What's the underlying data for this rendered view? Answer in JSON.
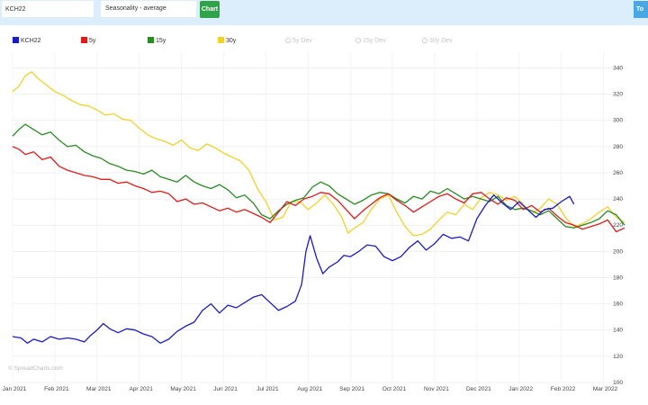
{
  "toolbar": {
    "symbol_value": "KCH22",
    "mode_value": "Seasonality - average",
    "chart_button": "Chart",
    "tools_button": "To"
  },
  "legend": [
    {
      "label": "KCH22",
      "color": "#1a1ac8",
      "active": true
    },
    {
      "label": "5y",
      "color": "#e11b1b",
      "active": true
    },
    {
      "label": "15y",
      "color": "#2a8a23",
      "active": true
    },
    {
      "label": "30y",
      "color": "#f1d22a",
      "active": true
    },
    {
      "label": "5y Dev",
      "color": "#cccccc",
      "active": false
    },
    {
      "label": "15y Dev",
      "color": "#cccccc",
      "active": false
    },
    {
      "label": "30y Dev",
      "color": "#cccccc",
      "active": false
    }
  ],
  "watermark": "© SpreadCharts.com",
  "chart_data": {
    "type": "line",
    "x_ticks": [
      "Jan 2021",
      "Feb 2021",
      "Mar 2021",
      "Apr 2021",
      "May 2021",
      "Jun 2021",
      "Jul 2021",
      "Aug 2021",
      "Sep 2021",
      "Oct 2021",
      "Nov 2021",
      "Dec 2021",
      "Jan 2022",
      "Feb 2022",
      "Mar 2022"
    ],
    "y_ticks": [
      100,
      120,
      140,
      160,
      180,
      200,
      220,
      240,
      260,
      280,
      300,
      320,
      340
    ],
    "ylim": [
      100,
      352
    ],
    "xlim": [
      0,
      14.5
    ],
    "grid": true,
    "legend_position": "top-left",
    "series": [
      {
        "name": "KCH22",
        "color": "#1a1ac8",
        "points": [
          [
            0,
            135
          ],
          [
            0.2,
            134
          ],
          [
            0.35,
            130
          ],
          [
            0.5,
            133
          ],
          [
            0.7,
            131
          ],
          [
            0.9,
            135
          ],
          [
            1.1,
            133
          ],
          [
            1.3,
            134
          ],
          [
            1.5,
            133
          ],
          [
            1.7,
            131
          ],
          [
            1.85,
            136
          ],
          [
            2.0,
            140
          ],
          [
            2.15,
            145
          ],
          [
            2.3,
            141
          ],
          [
            2.5,
            138
          ],
          [
            2.7,
            141
          ],
          [
            2.9,
            140
          ],
          [
            3.1,
            137
          ],
          [
            3.3,
            135
          ],
          [
            3.5,
            130
          ],
          [
            3.7,
            133
          ],
          [
            3.9,
            139
          ],
          [
            4.1,
            143
          ],
          [
            4.3,
            146
          ],
          [
            4.5,
            155
          ],
          [
            4.7,
            160
          ],
          [
            4.9,
            153
          ],
          [
            5.1,
            159
          ],
          [
            5.3,
            157
          ],
          [
            5.5,
            161
          ],
          [
            5.7,
            165
          ],
          [
            5.9,
            167
          ],
          [
            6.1,
            161
          ],
          [
            6.3,
            155
          ],
          [
            6.5,
            158
          ],
          [
            6.7,
            162
          ],
          [
            6.85,
            175
          ],
          [
            6.95,
            200
          ],
          [
            7.05,
            212
          ],
          [
            7.2,
            195
          ],
          [
            7.35,
            183
          ],
          [
            7.5,
            188
          ],
          [
            7.7,
            192
          ],
          [
            7.85,
            197
          ],
          [
            8.0,
            196
          ],
          [
            8.2,
            200
          ],
          [
            8.4,
            205
          ],
          [
            8.6,
            204
          ],
          [
            8.8,
            196
          ],
          [
            9.0,
            193
          ],
          [
            9.2,
            196
          ],
          [
            9.4,
            203
          ],
          [
            9.6,
            208
          ],
          [
            9.8,
            201
          ],
          [
            10.0,
            206
          ],
          [
            10.2,
            213
          ],
          [
            10.4,
            210
          ],
          [
            10.6,
            211
          ],
          [
            10.8,
            208
          ],
          [
            11.0,
            225
          ],
          [
            11.2,
            235
          ],
          [
            11.4,
            243
          ],
          [
            11.6,
            237
          ],
          [
            11.8,
            232
          ],
          [
            12.0,
            238
          ],
          [
            12.2,
            232
          ],
          [
            12.4,
            226
          ],
          [
            12.6,
            232
          ],
          [
            12.8,
            233
          ],
          [
            13.0,
            238
          ],
          [
            13.2,
            242
          ],
          [
            13.3,
            236
          ]
        ]
      },
      {
        "name": "5y",
        "color": "#e11b1b",
        "points": [
          [
            0,
            280
          ],
          [
            0.15,
            278
          ],
          [
            0.3,
            274
          ],
          [
            0.5,
            276
          ],
          [
            0.7,
            270
          ],
          [
            0.9,
            272
          ],
          [
            1.1,
            265
          ],
          [
            1.3,
            262
          ],
          [
            1.5,
            260
          ],
          [
            1.7,
            258
          ],
          [
            1.9,
            257
          ],
          [
            2.1,
            255
          ],
          [
            2.3,
            255
          ],
          [
            2.5,
            252
          ],
          [
            2.7,
            253
          ],
          [
            2.9,
            250
          ],
          [
            3.1,
            248
          ],
          [
            3.3,
            245
          ],
          [
            3.5,
            246
          ],
          [
            3.7,
            244
          ],
          [
            3.9,
            238
          ],
          [
            4.1,
            240
          ],
          [
            4.3,
            236
          ],
          [
            4.5,
            237
          ],
          [
            4.7,
            234
          ],
          [
            4.9,
            231
          ],
          [
            5.1,
            233
          ],
          [
            5.3,
            230
          ],
          [
            5.5,
            232
          ],
          [
            5.7,
            229
          ],
          [
            5.9,
            226
          ],
          [
            6.1,
            222
          ],
          [
            6.3,
            230
          ],
          [
            6.5,
            238
          ],
          [
            6.7,
            235
          ],
          [
            6.9,
            240
          ],
          [
            7.1,
            242
          ],
          [
            7.3,
            245
          ],
          [
            7.5,
            244
          ],
          [
            7.7,
            239
          ],
          [
            7.9,
            232
          ],
          [
            8.1,
            225
          ],
          [
            8.3,
            231
          ],
          [
            8.5,
            236
          ],
          [
            8.7,
            241
          ],
          [
            8.9,
            244
          ],
          [
            9.1,
            239
          ],
          [
            9.3,
            235
          ],
          [
            9.5,
            230
          ],
          [
            9.7,
            234
          ],
          [
            9.9,
            238
          ],
          [
            10.1,
            242
          ],
          [
            10.3,
            244
          ],
          [
            10.5,
            240
          ],
          [
            10.7,
            237
          ],
          [
            10.9,
            244
          ],
          [
            11.1,
            245
          ],
          [
            11.3,
            240
          ],
          [
            11.5,
            236
          ],
          [
            11.7,
            241
          ],
          [
            11.9,
            239
          ],
          [
            12.1,
            232
          ],
          [
            12.3,
            235
          ],
          [
            12.5,
            230
          ],
          [
            12.7,
            233
          ],
          [
            12.9,
            227
          ],
          [
            13.1,
            222
          ],
          [
            13.3,
            220
          ],
          [
            13.5,
            217
          ],
          [
            13.7,
            219
          ],
          [
            13.9,
            221
          ],
          [
            14.1,
            224
          ],
          [
            14.3,
            215
          ],
          [
            14.5,
            218
          ]
        ]
      },
      {
        "name": "15y",
        "color": "#2a8a23",
        "points": [
          [
            0,
            288
          ],
          [
            0.15,
            293
          ],
          [
            0.3,
            297
          ],
          [
            0.5,
            293
          ],
          [
            0.7,
            289
          ],
          [
            0.9,
            291
          ],
          [
            1.1,
            285
          ],
          [
            1.3,
            280
          ],
          [
            1.5,
            281
          ],
          [
            1.7,
            276
          ],
          [
            1.9,
            273
          ],
          [
            2.1,
            271
          ],
          [
            2.3,
            267
          ],
          [
            2.5,
            265
          ],
          [
            2.7,
            262
          ],
          [
            2.9,
            261
          ],
          [
            3.1,
            259
          ],
          [
            3.3,
            262
          ],
          [
            3.5,
            257
          ],
          [
            3.7,
            255
          ],
          [
            3.9,
            253
          ],
          [
            4.1,
            258
          ],
          [
            4.3,
            253
          ],
          [
            4.5,
            250
          ],
          [
            4.7,
            248
          ],
          [
            4.9,
            251
          ],
          [
            5.1,
            247
          ],
          [
            5.3,
            241
          ],
          [
            5.5,
            243
          ],
          [
            5.7,
            237
          ],
          [
            5.9,
            228
          ],
          [
            6.1,
            225
          ],
          [
            6.3,
            231
          ],
          [
            6.5,
            236
          ],
          [
            6.7,
            239
          ],
          [
            6.9,
            241
          ],
          [
            7.1,
            249
          ],
          [
            7.3,
            253
          ],
          [
            7.5,
            250
          ],
          [
            7.7,
            244
          ],
          [
            7.9,
            240
          ],
          [
            8.1,
            236
          ],
          [
            8.3,
            239
          ],
          [
            8.5,
            243
          ],
          [
            8.7,
            245
          ],
          [
            8.9,
            244
          ],
          [
            9.1,
            240
          ],
          [
            9.3,
            237
          ],
          [
            9.5,
            242
          ],
          [
            9.7,
            240
          ],
          [
            9.9,
            246
          ],
          [
            10.1,
            244
          ],
          [
            10.3,
            248
          ],
          [
            10.5,
            244
          ],
          [
            10.7,
            240
          ],
          [
            10.9,
            242
          ],
          [
            11.1,
            240
          ],
          [
            11.3,
            238
          ],
          [
            11.5,
            242
          ],
          [
            11.7,
            235
          ],
          [
            11.9,
            232
          ],
          [
            12.1,
            233
          ],
          [
            12.3,
            231
          ],
          [
            12.5,
            228
          ],
          [
            12.7,
            231
          ],
          [
            12.9,
            225
          ],
          [
            13.1,
            219
          ],
          [
            13.3,
            218
          ],
          [
            13.5,
            220
          ],
          [
            13.7,
            222
          ],
          [
            13.9,
            225
          ],
          [
            14.1,
            231
          ],
          [
            14.3,
            228
          ],
          [
            14.5,
            220
          ]
        ]
      },
      {
        "name": "30y",
        "color": "#f1d22a",
        "points": [
          [
            0,
            322
          ],
          [
            0.15,
            326
          ],
          [
            0.3,
            334
          ],
          [
            0.45,
            337
          ],
          [
            0.6,
            332
          ],
          [
            0.8,
            327
          ],
          [
            1.0,
            322
          ],
          [
            1.2,
            319
          ],
          [
            1.4,
            315
          ],
          [
            1.6,
            312
          ],
          [
            1.8,
            311
          ],
          [
            2.0,
            308
          ],
          [
            2.2,
            304
          ],
          [
            2.4,
            305
          ],
          [
            2.6,
            301
          ],
          [
            2.8,
            300
          ],
          [
            3.0,
            294
          ],
          [
            3.2,
            289
          ],
          [
            3.4,
            286
          ],
          [
            3.6,
            284
          ],
          [
            3.8,
            281
          ],
          [
            4.0,
            285
          ],
          [
            4.2,
            279
          ],
          [
            4.4,
            277
          ],
          [
            4.6,
            282
          ],
          [
            4.8,
            279
          ],
          [
            5.0,
            275
          ],
          [
            5.2,
            272
          ],
          [
            5.4,
            269
          ],
          [
            5.6,
            262
          ],
          [
            5.8,
            248
          ],
          [
            6.0,
            238
          ],
          [
            6.2,
            224
          ],
          [
            6.4,
            226
          ],
          [
            6.6,
            238
          ],
          [
            6.8,
            238
          ],
          [
            7.0,
            232
          ],
          [
            7.2,
            237
          ],
          [
            7.4,
            243
          ],
          [
            7.6,
            236
          ],
          [
            7.8,
            226
          ],
          [
            7.95,
            214
          ],
          [
            8.1,
            218
          ],
          [
            8.3,
            222
          ],
          [
            8.5,
            232
          ],
          [
            8.7,
            240
          ],
          [
            8.9,
            243
          ],
          [
            9.1,
            230
          ],
          [
            9.3,
            219
          ],
          [
            9.5,
            212
          ],
          [
            9.7,
            213
          ],
          [
            9.9,
            217
          ],
          [
            10.1,
            224
          ],
          [
            10.3,
            230
          ],
          [
            10.5,
            228
          ],
          [
            10.7,
            236
          ],
          [
            10.9,
            232
          ],
          [
            11.1,
            241
          ],
          [
            11.3,
            245
          ],
          [
            11.5,
            243
          ],
          [
            11.7,
            239
          ],
          [
            11.9,
            242
          ],
          [
            12.1,
            236
          ],
          [
            12.3,
            229
          ],
          [
            12.5,
            233
          ],
          [
            12.7,
            240
          ],
          [
            12.9,
            236
          ],
          [
            13.1,
            226
          ],
          [
            13.3,
            219
          ],
          [
            13.5,
            221
          ],
          [
            13.7,
            225
          ],
          [
            13.9,
            230
          ],
          [
            14.1,
            234
          ],
          [
            14.3,
            226
          ],
          [
            14.5,
            222
          ]
        ]
      }
    ]
  }
}
